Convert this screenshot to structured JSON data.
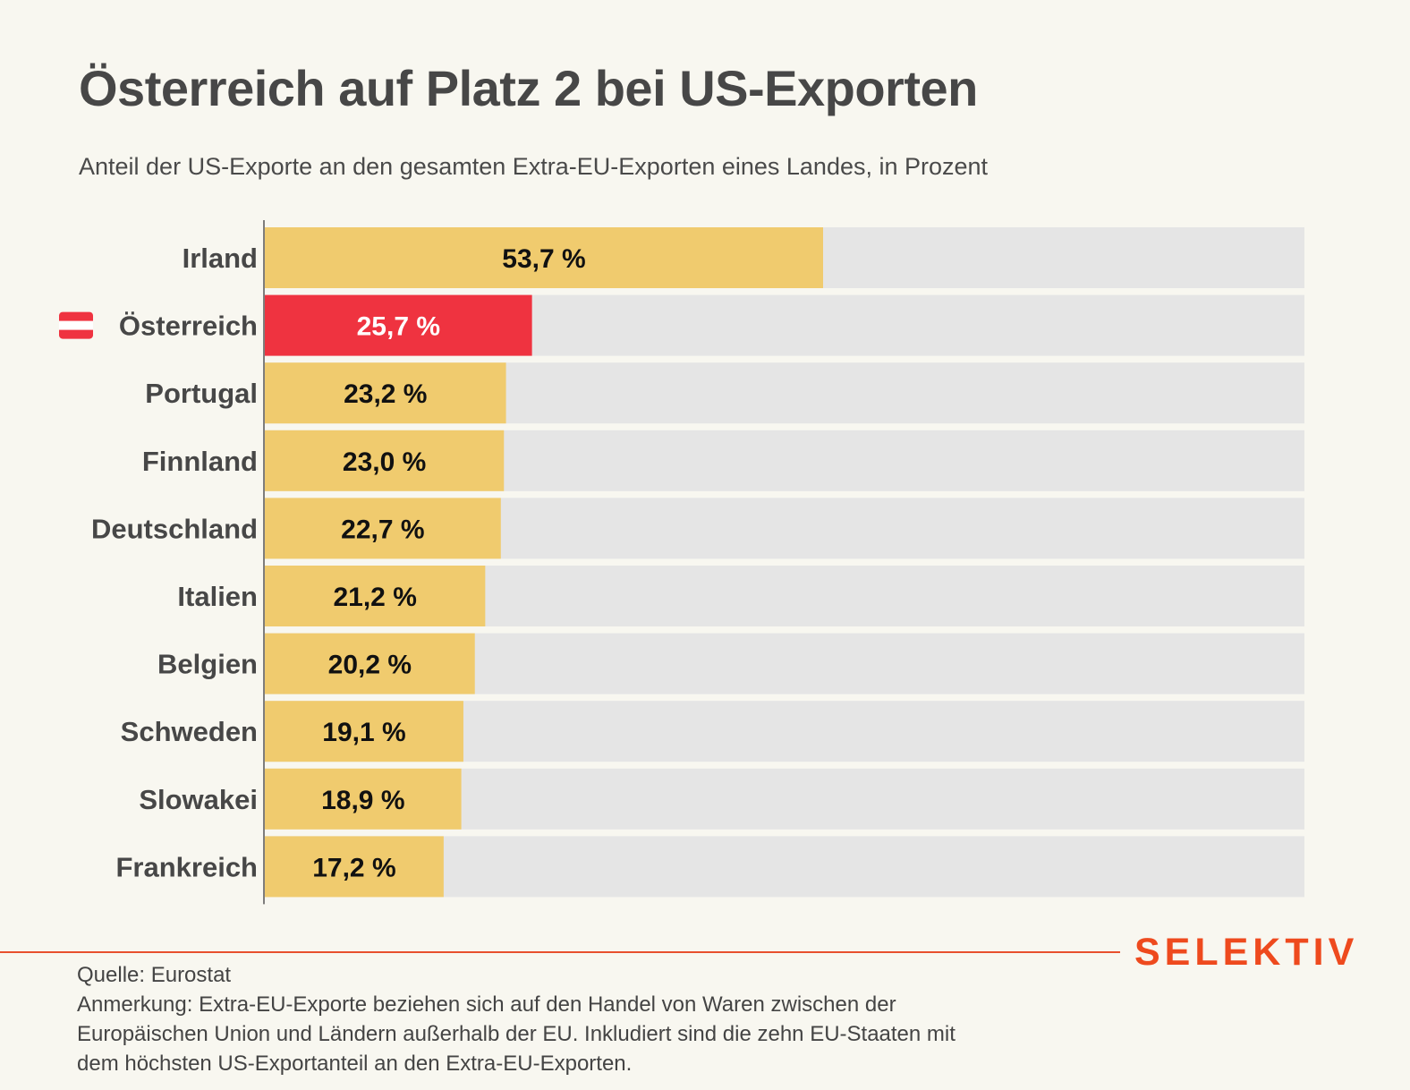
{
  "title": "Österreich auf Platz 2 bei US-Exporten",
  "subtitle": "Anteil der US-Exporte an den gesamten Extra-EU-Exporten eines Landes, in Prozent",
  "footer": {
    "source": "Quelle: Eurostat",
    "note_lines": [
      "Anmerkung: Extra-EU-Exporte beziehen sich auf den Handel von Waren zwischen der",
      "Europäischen Union und Ländern außerhalb der EU. Inkludiert sind die zehn EU-Staaten mit",
      "dem höchsten US-Exportanteil an den Extra-EU-Exporten."
    ],
    "brand": "SELEKTIV"
  },
  "colors": {
    "bar": "#f0cb6e",
    "highlight": "#ef3340",
    "track": "#e5e5e5",
    "label_dark": "#111111",
    "label_light": "#ffffff",
    "brand": "#ee4a1e"
  },
  "chart_data": {
    "type": "bar",
    "orientation": "horizontal",
    "categories": [
      "Irland",
      "Österreich",
      "Portugal",
      "Finnland",
      "Deutschland",
      "Italien",
      "Belgien",
      "Schweden",
      "Slowakei",
      "Frankreich"
    ],
    "values": [
      53.7,
      25.7,
      23.2,
      23.0,
      22.7,
      21.2,
      20.2,
      19.1,
      18.9,
      17.2
    ],
    "value_labels": [
      "53,7 %",
      "25,7 %",
      "23,2 %",
      "23,0 %",
      "22,7 %",
      "21,2 %",
      "20,2 %",
      "19,1 %",
      "18,9 %",
      "17,2 %"
    ],
    "highlight_category": "Österreich",
    "highlight_icon": "austria-flag-icon",
    "xlim": [
      0,
      100
    ],
    "grid": false,
    "legend": false
  }
}
